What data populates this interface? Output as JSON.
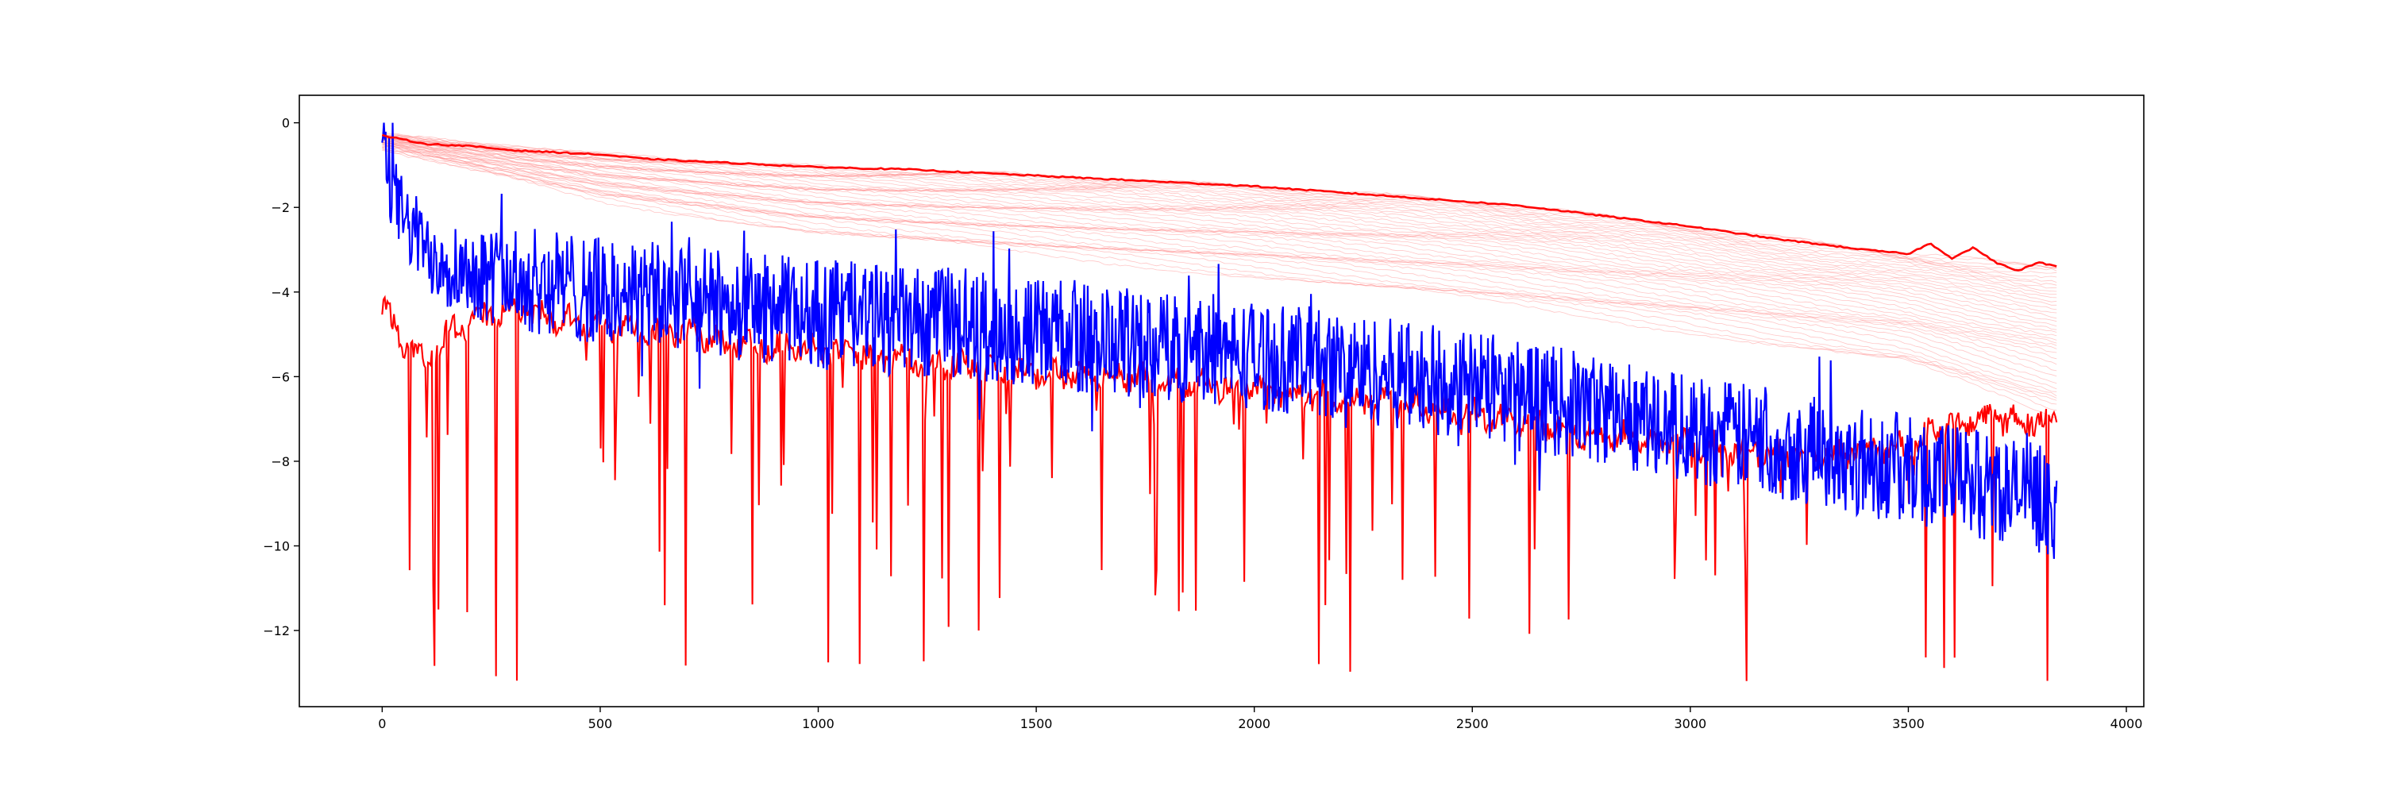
{
  "chart_data": {
    "type": "line",
    "title": "",
    "xlabel": "",
    "ylabel": "",
    "xlim": [
      -190,
      4040
    ],
    "ylim": [
      -13.8,
      0.65
    ],
    "grid": false,
    "legend": "none",
    "x_ticks": [
      0,
      500,
      1000,
      1500,
      2000,
      2500,
      3000,
      3500,
      4000
    ],
    "y_ticks": [
      0,
      -2,
      -4,
      -6,
      -8,
      -10,
      -12
    ],
    "x_extent": [
      0,
      3840
    ],
    "colors": {
      "red": "#ff0000",
      "blue": "#0000ff",
      "faint_red": "#ff8080"
    },
    "series": [
      {
        "style": "red-upper-envelope",
        "color": "#ff0000",
        "x": [
          0,
          100,
          200,
          300,
          400,
          500,
          600,
          800,
          1000,
          1200,
          1400,
          1600,
          1800,
          2000,
          2200,
          2400,
          2600,
          2800,
          3000,
          3200,
          3400,
          3500,
          3550,
          3600,
          3650,
          3700,
          3750,
          3800,
          3840
        ],
        "y": [
          -0.3,
          -0.5,
          -0.55,
          -0.65,
          -0.7,
          -0.75,
          -0.85,
          -0.95,
          -1.05,
          -1.1,
          -1.2,
          -1.3,
          -1.4,
          -1.5,
          -1.65,
          -1.8,
          -1.95,
          -2.2,
          -2.45,
          -2.75,
          -3.0,
          -3.1,
          -2.85,
          -3.2,
          -2.95,
          -3.3,
          -3.5,
          -3.3,
          -3.4
        ]
      },
      {
        "style": "faint-red-bundle",
        "color": "#ff8080",
        "x": [
          0,
          500,
          1000,
          1500,
          2000,
          2500,
          3000,
          3500,
          3840
        ],
        "y_top": [
          -0.3,
          -0.75,
          -1.05,
          -1.25,
          -1.5,
          -1.85,
          -2.45,
          -3.1,
          -3.4
        ],
        "y_bottom": [
          -0.6,
          -1.8,
          -2.6,
          -3.1,
          -3.6,
          -4.2,
          -4.9,
          -5.7,
          -7.0
        ]
      },
      {
        "style": "red-noisy",
        "color": "#ff0000",
        "x": [
          0,
          50,
          100,
          150,
          200,
          300,
          400,
          500,
          700,
          900,
          1100,
          1300,
          1500,
          1700,
          1900,
          2100,
          2300,
          2500,
          2700,
          2900,
          3100,
          3300,
          3500,
          3600,
          3700,
          3840
        ],
        "y": [
          -4.3,
          -5.2,
          -5.6,
          -5.0,
          -4.7,
          -4.4,
          -4.6,
          -4.8,
          -5.0,
          -5.3,
          -5.5,
          -5.7,
          -5.9,
          -6.0,
          -6.2,
          -6.4,
          -6.6,
          -6.9,
          -7.2,
          -7.5,
          -7.7,
          -7.9,
          -7.6,
          -7.1,
          -7.0,
          -7.1
        ],
        "dip_min": -13.2
      },
      {
        "style": "blue-noisy",
        "color": "#0000ff",
        "x": [
          0,
          20,
          50,
          100,
          150,
          200,
          300,
          400,
          500,
          700,
          900,
          1100,
          1300,
          1500,
          1700,
          1900,
          2100,
          2300,
          2500,
          2700,
          2900,
          3100,
          3300,
          3500,
          3700,
          3840
        ],
        "y": [
          -0.2,
          -1.5,
          -2.3,
          -3.0,
          -3.3,
          -3.5,
          -3.7,
          -3.8,
          -4.0,
          -4.2,
          -4.4,
          -4.6,
          -4.8,
          -5.0,
          -5.2,
          -5.4,
          -5.6,
          -5.9,
          -6.2,
          -6.6,
          -7.0,
          -7.4,
          -7.8,
          -8.2,
          -8.6,
          -9.0
        ],
        "noise_max": 0.0,
        "noise_min": -11.5
      }
    ]
  }
}
